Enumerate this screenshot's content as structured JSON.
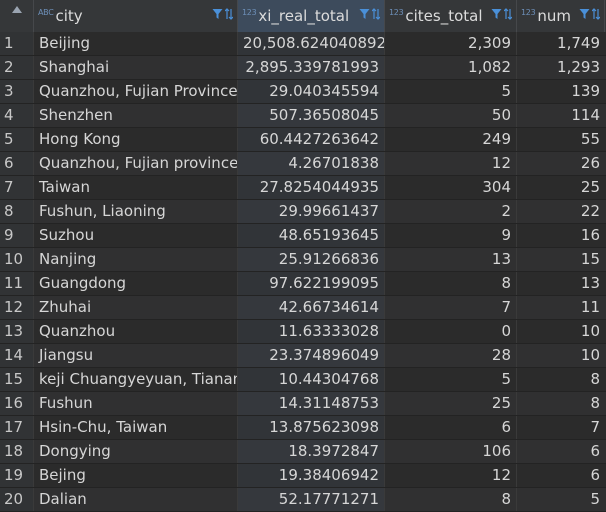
{
  "columns": [
    {
      "type_badge": "ABC",
      "label": "city"
    },
    {
      "type_badge": "123",
      "label": "xi_real_total"
    },
    {
      "type_badge": "123",
      "label": "cites_total"
    },
    {
      "type_badge": "123",
      "label": "num"
    }
  ],
  "rows": [
    {
      "n": "1",
      "city": "Beijing",
      "xi": "20,508.624040892",
      "cites": "2,309",
      "num": "1,749"
    },
    {
      "n": "2",
      "city": "Shanghai",
      "xi": "2,895.339781993",
      "cites": "1,082",
      "num": "1,293"
    },
    {
      "n": "3",
      "city": "Quanzhou, Fujian Province",
      "xi": "29.040345594",
      "cites": "5",
      "num": "139"
    },
    {
      "n": "4",
      "city": "Shenzhen",
      "xi": "507.36508045",
      "cites": "50",
      "num": "114"
    },
    {
      "n": "5",
      "city": "Hong Kong",
      "xi": "60.4427263642",
      "cites": "249",
      "num": "55"
    },
    {
      "n": "6",
      "city": "Quanzhou, Fujian province",
      "xi": "4.26701838",
      "cites": "12",
      "num": "26"
    },
    {
      "n": "7",
      "city": "Taiwan",
      "xi": "27.8254044935",
      "cites": "304",
      "num": "25"
    },
    {
      "n": "8",
      "city": "Fushun, Liaoning",
      "xi": "29.99661437",
      "cites": "2",
      "num": "22"
    },
    {
      "n": "9",
      "city": "Suzhou",
      "xi": "48.65193645",
      "cites": "9",
      "num": "16"
    },
    {
      "n": "10",
      "city": "Nanjing",
      "xi": "25.91266836",
      "cites": "13",
      "num": "15"
    },
    {
      "n": "11",
      "city": "Guangdong",
      "xi": "97.622199095",
      "cites": "8",
      "num": "13"
    },
    {
      "n": "12",
      "city": "Zhuhai",
      "xi": "42.66734614",
      "cites": "7",
      "num": "11"
    },
    {
      "n": "13",
      "city": "Quanzhou",
      "xi": "11.63333028",
      "cites": "0",
      "num": "10"
    },
    {
      "n": "14",
      "city": "Jiangsu",
      "xi": "23.374896049",
      "cites": "28",
      "num": "10"
    },
    {
      "n": "15",
      "city": "keji Chuangyeyuan, Tianan I",
      "xi": "10.44304768",
      "cites": "5",
      "num": "8"
    },
    {
      "n": "16",
      "city": "Fushun",
      "xi": "14.31148753",
      "cites": "25",
      "num": "8"
    },
    {
      "n": "17",
      "city": "Hsin-Chu, Taiwan",
      "xi": "13.875623098",
      "cites": "6",
      "num": "7"
    },
    {
      "n": "18",
      "city": "Dongying",
      "xi": "18.3972847",
      "cites": "106",
      "num": "6"
    },
    {
      "n": "19",
      "city": "Bejing",
      "xi": "19.38406942",
      "cites": "12",
      "num": "6"
    },
    {
      "n": "20",
      "city": "Dalian",
      "xi": "52.17771271",
      "cites": "8",
      "num": "5"
    }
  ],
  "colors": {
    "background": "#2b2b2b",
    "header": "#353739",
    "selected_header": "#3d4b5c",
    "icon_accent": "#4a90d9"
  },
  "icons": {
    "filter": "filter-icon",
    "sort": "sort-icon",
    "corner": "select-all-icon"
  }
}
